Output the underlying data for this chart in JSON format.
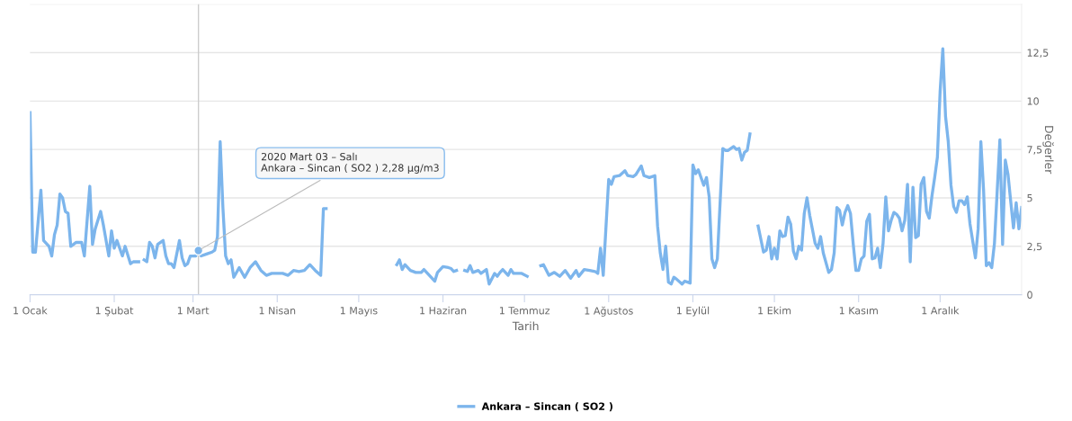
{
  "chart_data": {
    "type": "line",
    "xlabel": "Tarih",
    "ylabel": "Değerler",
    "legend": "bottom",
    "grid": "y",
    "marker": "none",
    "line_style": "solid",
    "xlim": [
      "2020-01-01",
      "2020-12-31"
    ],
    "xticks": [
      {
        "value": "2020-01-01",
        "label": "1 Ocak"
      },
      {
        "value": "2020-02-01",
        "label": "1 Şubat"
      },
      {
        "value": "2020-03-01",
        "label": "1 Mart"
      },
      {
        "value": "2020-04-01",
        "label": "1 Nisan"
      },
      {
        "value": "2020-05-01",
        "label": "1 Mayıs"
      },
      {
        "value": "2020-06-01",
        "label": "1 Haziran"
      },
      {
        "value": "2020-07-01",
        "label": "1 Temmuz"
      },
      {
        "value": "2020-08-01",
        "label": "1 Ağustos"
      },
      {
        "value": "2020-09-01",
        "label": "1 Eylül"
      },
      {
        "value": "2020-10-01",
        "label": "1 Ekim"
      },
      {
        "value": "2020-11-01",
        "label": "1 Kasım"
      },
      {
        "value": "2020-12-01",
        "label": "1 Aralık"
      }
    ],
    "ylim": [
      0,
      15
    ],
    "yticks": [
      {
        "value": 0,
        "label": "0"
      },
      {
        "value": 2.5,
        "label": "2,5"
      },
      {
        "value": 5,
        "label": "5"
      },
      {
        "value": 7.5,
        "label": "7,5"
      },
      {
        "value": 10,
        "label": "10"
      },
      {
        "value": 12.5,
        "label": "12,5"
      },
      {
        "value": 15,
        "label": null
      }
    ],
    "ref_lines": [
      {
        "axis": "x",
        "value": "2020-03-03",
        "color": "#cccccc"
      }
    ],
    "annotations": [
      {
        "text": "2020 Mart 03 – Salı\nAnkara – Sincan ( SO2 ) 2,28 μg/m3",
        "x": "2020-03-03",
        "y": 2.28
      }
    ],
    "series": [
      {
        "name": "Ankara – Sincan ( SO2 )",
        "color": "#7cb5ec",
        "x": [
          "2020-01-01",
          "2020-01-02",
          "2020-01-03",
          "2020-01-05",
          "2020-01-06",
          "2020-01-08",
          "2020-01-09",
          "2020-01-10",
          "2020-01-11",
          "2020-01-12",
          "2020-01-13",
          "2020-01-14",
          "2020-01-15",
          "2020-01-16",
          "2020-01-18",
          "2020-01-20",
          "2020-01-21",
          "2020-01-23",
          "2020-01-24",
          "2020-01-25",
          "2020-01-27",
          "2020-01-28",
          "2020-01-30",
          "2020-01-31",
          "2020-02-01",
          "2020-02-02",
          "2020-02-04",
          "2020-02-05",
          "2020-02-07",
          "2020-02-08",
          "2020-02-10",
          "2020-02-11",
          "2020-02-12",
          "2020-02-13",
          "2020-02-14",
          "2020-02-15",
          "2020-02-16",
          "2020-02-17",
          "2020-02-19",
          "2020-02-20",
          "2020-02-21",
          "2020-02-22",
          "2020-02-23",
          "2020-02-25",
          "2020-02-26",
          "2020-02-27",
          "2020-02-28",
          "2020-02-29",
          "2020-03-02",
          "2020-03-03",
          "2020-03-04",
          "2020-03-06",
          "2020-03-08",
          "2020-03-09",
          "2020-03-10",
          "2020-03-11",
          "2020-03-12",
          "2020-03-13",
          "2020-03-14",
          "2020-03-15",
          "2020-03-16",
          "2020-03-18",
          "2020-03-20",
          "2020-03-22",
          "2020-03-24",
          "2020-03-26",
          "2020-03-28",
          "2020-03-30",
          "2020-04-01",
          "2020-04-03",
          "2020-04-05",
          "2020-04-07",
          "2020-04-09",
          "2020-04-11",
          "2020-04-13",
          "2020-04-15",
          "2020-04-17",
          "2020-04-18",
          "2020-04-19",
          "2020-05-01",
          "2020-05-15",
          "2020-05-16",
          "2020-05-17",
          "2020-05-18",
          "2020-05-19",
          "2020-05-20",
          "2020-05-22",
          "2020-05-24",
          "2020-05-25",
          "2020-05-27",
          "2020-05-29",
          "2020-05-30",
          "2020-06-01",
          "2020-06-03",
          "2020-06-04",
          "2020-06-05",
          "2020-06-06",
          "2020-06-07",
          "2020-06-09",
          "2020-06-10",
          "2020-06-11",
          "2020-06-12",
          "2020-06-14",
          "2020-06-15",
          "2020-06-17",
          "2020-06-18",
          "2020-06-20",
          "2020-06-21",
          "2020-06-22",
          "2020-06-23",
          "2020-06-25",
          "2020-06-26",
          "2020-06-27",
          "2020-06-29",
          "2020-06-30",
          "2020-07-02",
          "2020-07-04",
          "2020-07-07",
          "2020-07-08",
          "2020-07-10",
          "2020-07-12",
          "2020-07-14",
          "2020-07-16",
          "2020-07-18",
          "2020-07-20",
          "2020-07-21",
          "2020-07-23",
          "2020-07-25",
          "2020-07-27",
          "2020-07-28",
          "2020-07-29",
          "2020-07-30",
          "2020-08-01",
          "2020-08-02",
          "2020-08-03",
          "2020-08-05",
          "2020-08-07",
          "2020-08-08",
          "2020-08-10",
          "2020-08-11",
          "2020-08-13",
          "2020-08-14",
          "2020-08-16",
          "2020-08-18",
          "2020-08-19",
          "2020-08-20",
          "2020-08-21",
          "2020-08-22",
          "2020-08-23",
          "2020-08-24",
          "2020-08-25",
          "2020-08-26",
          "2020-08-28",
          "2020-08-29",
          "2020-08-31",
          "2020-09-01",
          "2020-09-02",
          "2020-09-03",
          "2020-09-05",
          "2020-09-06",
          "2020-09-07",
          "2020-09-08",
          "2020-09-09",
          "2020-09-10",
          "2020-09-12",
          "2020-09-13",
          "2020-09-14",
          "2020-09-16",
          "2020-09-17",
          "2020-09-18",
          "2020-09-19",
          "2020-09-20",
          "2020-09-21",
          "2020-09-22",
          "2020-09-23",
          "2020-09-25",
          "2020-09-27",
          "2020-09-28",
          "2020-09-29",
          "2020-09-30",
          "2020-10-01",
          "2020-10-02",
          "2020-10-03",
          "2020-10-04",
          "2020-10-05",
          "2020-10-06",
          "2020-10-07",
          "2020-10-08",
          "2020-10-09",
          "2020-10-10",
          "2020-10-11",
          "2020-10-12",
          "2020-10-13",
          "2020-10-14",
          "2020-10-16",
          "2020-10-17",
          "2020-10-18",
          "2020-10-19",
          "2020-10-21",
          "2020-10-22",
          "2020-10-23",
          "2020-10-24",
          "2020-10-25",
          "2020-10-26",
          "2020-10-27",
          "2020-10-28",
          "2020-10-29",
          "2020-10-30",
          "2020-10-31",
          "2020-11-01",
          "2020-11-02",
          "2020-11-03",
          "2020-11-04",
          "2020-11-05",
          "2020-11-06",
          "2020-11-07",
          "2020-11-08",
          "2020-11-09",
          "2020-11-10",
          "2020-11-11",
          "2020-11-12",
          "2020-11-13",
          "2020-11-14",
          "2020-11-15",
          "2020-11-16",
          "2020-11-17",
          "2020-11-18",
          "2020-11-19",
          "2020-11-20",
          "2020-11-21",
          "2020-11-22",
          "2020-11-23",
          "2020-11-24",
          "2020-11-25",
          "2020-11-26",
          "2020-11-27",
          "2020-11-28",
          "2020-11-29",
          "2020-11-30",
          "2020-12-01",
          "2020-12-02",
          "2020-12-03",
          "2020-12-04",
          "2020-12-05",
          "2020-12-06",
          "2020-12-07",
          "2020-12-08",
          "2020-12-09",
          "2020-12-10",
          "2020-12-11",
          "2020-12-12",
          "2020-12-14",
          "2020-12-15",
          "2020-12-16",
          "2020-12-17",
          "2020-12-18",
          "2020-12-19",
          "2020-12-20",
          "2020-12-21",
          "2020-12-23",
          "2020-12-24",
          "2020-12-25",
          "2020-12-26",
          "2020-12-27",
          "2020-12-28",
          "2020-12-29",
          "2020-12-30",
          "2020-12-31"
        ],
        "values": [
          9.4,
          2.2,
          2.2,
          5.4,
          2.8,
          2.5,
          2.0,
          3.1,
          3.6,
          5.2,
          5.0,
          4.3,
          4.2,
          2.5,
          2.7,
          2.7,
          2.0,
          5.6,
          2.6,
          3.4,
          4.3,
          3.6,
          2.0,
          3.3,
          2.4,
          2.8,
          2.0,
          2.5,
          1.6,
          1.7,
          1.7,
          null,
          1.8,
          1.7,
          2.7,
          2.5,
          1.9,
          2.6,
          2.8,
          2.0,
          1.6,
          1.6,
          1.4,
          2.8,
          1.9,
          1.5,
          1.6,
          2.0,
          2.0,
          2.28,
          2.0,
          2.1,
          2.2,
          2.3,
          3.0,
          7.9,
          4.5,
          2.0,
          1.6,
          1.8,
          0.9,
          1.4,
          0.9,
          1.4,
          1.7,
          1.25,
          1.0,
          1.1,
          1.1,
          1.1,
          1.0,
          1.25,
          1.2,
          1.25,
          1.55,
          1.25,
          1.0,
          4.45,
          4.45,
          null,
          1.55,
          1.8,
          1.3,
          1.55,
          1.4,
          1.25,
          1.15,
          1.15,
          1.3,
          1.0,
          0.7,
          1.15,
          1.45,
          1.4,
          1.35,
          1.2,
          1.25,
          null,
          1.25,
          1.2,
          1.5,
          1.15,
          1.25,
          1.1,
          1.3,
          0.55,
          1.1,
          0.95,
          1.15,
          1.3,
          1.0,
          1.3,
          1.1,
          1.1,
          1.1,
          0.95,
          null,
          1.5,
          1.55,
          1.0,
          1.15,
          0.95,
          1.25,
          0.85,
          1.25,
          0.95,
          1.3,
          1.25,
          1.2,
          1.1,
          2.4,
          1.0,
          5.95,
          5.7,
          6.1,
          6.15,
          6.4,
          6.15,
          6.1,
          6.2,
          6.65,
          6.15,
          6.05,
          6.15,
          3.55,
          2.15,
          1.3,
          2.5,
          0.65,
          0.55,
          0.9,
          0.8,
          0.55,
          0.7,
          0.6,
          6.7,
          6.25,
          6.45,
          5.65,
          6.05,
          5.05,
          1.85,
          1.4,
          1.85,
          7.55,
          7.45,
          7.45,
          7.65,
          7.5,
          7.55,
          6.95,
          7.35,
          7.45,
          8.3,
          null,
          3.55,
          2.2,
          2.3,
          3.0,
          1.85,
          2.4,
          1.85,
          3.3,
          3.0,
          3.05,
          4.0,
          3.65,
          2.25,
          1.85,
          2.5,
          2.3,
          4.2,
          5.0,
          4.1,
          2.65,
          2.4,
          3.0,
          2.15,
          1.15,
          1.3,
          2.15,
          4.5,
          4.35,
          3.6,
          4.25,
          4.6,
          4.2,
          2.65,
          1.25,
          1.25,
          1.85,
          2.0,
          3.8,
          4.15,
          1.85,
          1.9,
          2.4,
          1.4,
          2.65,
          5.05,
          3.3,
          3.85,
          4.25,
          4.15,
          3.95,
          3.3,
          3.85,
          5.7,
          1.7,
          5.55,
          2.95,
          3.05,
          5.7,
          6.05,
          4.3,
          3.95,
          5.1,
          6.05,
          7.1,
          10.5,
          12.7,
          9.2,
          7.9,
          5.65,
          4.55,
          4.25,
          4.85,
          4.85,
          4.65,
          5.05,
          3.65,
          1.9,
          3.4,
          7.9,
          5.4,
          1.5,
          1.65,
          1.4,
          2.65,
          8.0,
          2.6,
          6.95,
          6.2,
          4.8,
          3.45,
          4.75,
          3.4,
          4.5
        ]
      }
    ]
  }
}
